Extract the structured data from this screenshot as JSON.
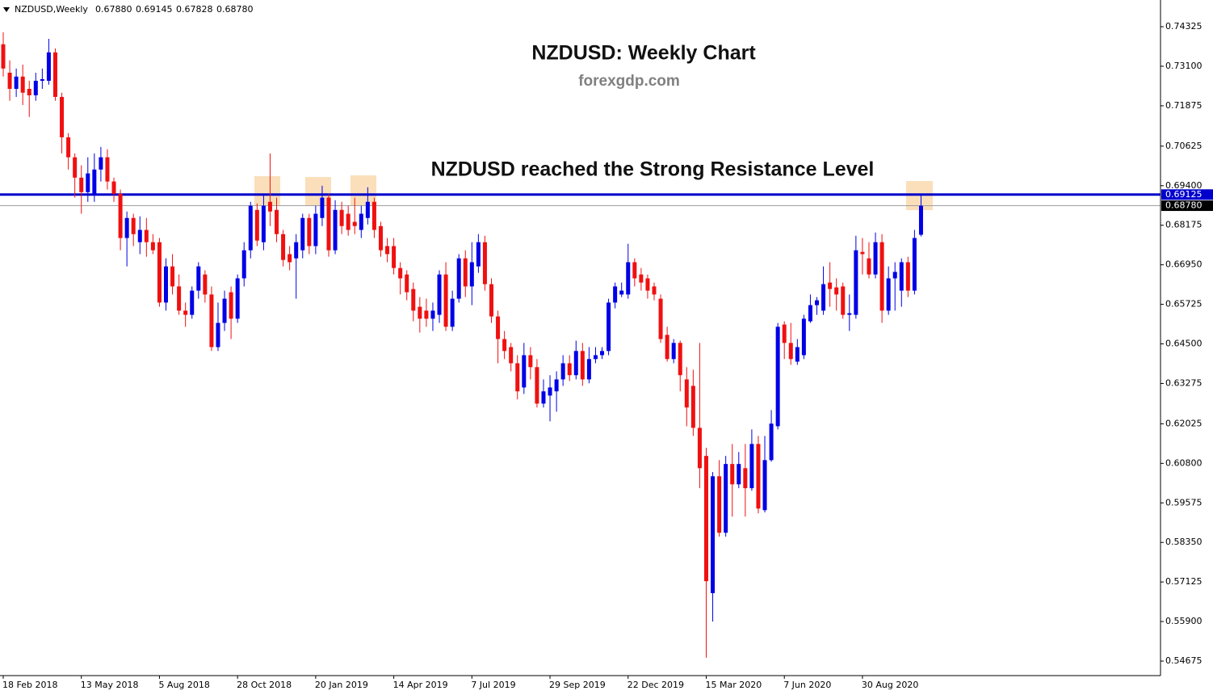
{
  "chart_data": {
    "type": "candlestick",
    "header": "NZDUSD,Weekly",
    "header_values": [
      {
        "value": 0.6788,
        "label": "0.67880"
      },
      {
        "value": 0.69145,
        "label": "0.69145"
      },
      {
        "value": 0.67828,
        "label": "0.67828"
      },
      {
        "value": 0.6878,
        "label": "0.68780"
      }
    ],
    "title": "NZDUSD: Weekly Chart",
    "subtitle": "forexgdp.com",
    "annotation": "NZDUSD reached the Strong Resistance Level",
    "up_color": "#0000e6",
    "down_color": "#f01010",
    "resistance": 0.69125,
    "resistance_color": "#0000cc",
    "last_price": {
      "value": 0.6878,
      "label": "0.68780"
    },
    "ylim": [
      0.54225,
      0.75152
    ],
    "yticks": [
      0.74325,
      {
        "value": 0.731,
        "label": "0.73100"
      },
      0.71875,
      0.70625,
      {
        "value": 0.694,
        "label": "0.69400"
      },
      0.68175,
      {
        "value": 0.6695,
        "label": "0.66950"
      },
      0.65725,
      {
        "value": 0.645,
        "label": "0.64500"
      },
      0.63275,
      0.62025,
      {
        "value": 0.608,
        "label": "0.60800"
      },
      0.59575,
      {
        "value": 0.5835,
        "label": "0.58350"
      },
      0.57125,
      {
        "value": 0.559,
        "label": "0.55900"
      },
      0.54675
    ],
    "xticks": [
      {
        "value": 0,
        "label": "18 Feb 2018"
      },
      {
        "value": 12,
        "label": "13 May 2018"
      },
      {
        "value": 24,
        "label": "5 Aug 2018"
      },
      {
        "value": 36,
        "label": "28 Oct 2018"
      },
      {
        "value": 48,
        "label": "20 Jan 2019"
      },
      {
        "value": 60,
        "label": "14 Apr 2019"
      },
      {
        "value": 72,
        "label": "7 Jul 2019"
      },
      {
        "value": 84,
        "label": "29 Sep 2019"
      },
      {
        "value": 96,
        "label": "22 Dec 2019"
      },
      {
        "value": 108,
        "label": "15 Mar 2020"
      },
      {
        "value": 120,
        "label": "7 Jun 2020"
      },
      {
        "value": 132,
        "label": "30 Aug 2020"
      }
    ],
    "candles": [
      [
        0.7378,
        0.7415,
        0.7278,
        0.7303
      ],
      [
        0.729,
        0.7328,
        0.7203,
        0.724
      ],
      [
        0.724,
        0.7303,
        0.7215,
        0.7278
      ],
      [
        0.7278,
        0.7315,
        0.719,
        0.7228
      ],
      [
        0.724,
        0.7265,
        0.7153,
        0.722
      ],
      [
        0.722,
        0.729,
        0.7203,
        0.7265
      ],
      [
        0.7265,
        0.7303,
        0.724,
        0.727
      ],
      [
        0.7265,
        0.7395,
        0.7253,
        0.7353
      ],
      [
        0.7353,
        0.7365,
        0.7203,
        0.7215
      ],
      [
        0.7215,
        0.7228,
        0.704,
        0.709
      ],
      [
        0.709,
        0.7103,
        0.699,
        0.7028
      ],
      [
        0.7028,
        0.704,
        0.6903,
        0.6965
      ],
      [
        0.6965,
        0.7003,
        0.6853,
        0.692
      ],
      [
        0.692,
        0.7028,
        0.689,
        0.6978
      ],
      [
        0.6915,
        0.704,
        0.689,
        0.699
      ],
      [
        0.699,
        0.706,
        0.6953,
        0.7028
      ],
      [
        0.7028,
        0.7053,
        0.6928,
        0.6953
      ],
      [
        0.6953,
        0.6965,
        0.689,
        0.6915
      ],
      [
        0.6915,
        0.6928,
        0.674,
        0.6778
      ],
      [
        0.6778,
        0.686,
        0.669,
        0.684
      ],
      [
        0.684,
        0.6853,
        0.6753,
        0.679
      ],
      [
        0.6765,
        0.6845,
        0.6728,
        0.6803
      ],
      [
        0.6803,
        0.684,
        0.672,
        0.6765
      ],
      [
        0.6765,
        0.679,
        0.6728,
        0.674
      ],
      [
        0.6765,
        0.6778,
        0.6565,
        0.6578
      ],
      [
        0.6578,
        0.6715,
        0.6553,
        0.669
      ],
      [
        0.669,
        0.6728,
        0.6603,
        0.6628
      ],
      [
        0.6628,
        0.6665,
        0.654,
        0.6553
      ],
      [
        0.6553,
        0.6578,
        0.6503,
        0.654
      ],
      [
        0.654,
        0.6628,
        0.6528,
        0.6615
      ],
      [
        0.6615,
        0.6703,
        0.659,
        0.669
      ],
      [
        0.6665,
        0.6678,
        0.6578,
        0.6603
      ],
      [
        0.6603,
        0.6628,
        0.6428,
        0.644
      ],
      [
        0.644,
        0.6578,
        0.6428,
        0.6515
      ],
      [
        0.6515,
        0.6615,
        0.649,
        0.659
      ],
      [
        0.661,
        0.6628,
        0.6465,
        0.6528
      ],
      [
        0.6528,
        0.6665,
        0.6515,
        0.6653
      ],
      [
        0.6653,
        0.6765,
        0.6628,
        0.674
      ],
      [
        0.674,
        0.689,
        0.6715,
        0.6878
      ],
      [
        0.6865,
        0.6885,
        0.6753,
        0.677
      ],
      [
        0.6765,
        0.6915,
        0.674,
        0.6878
      ],
      [
        0.689,
        0.704,
        0.6815,
        0.686
      ],
      [
        0.6865,
        0.6903,
        0.6765,
        0.679
      ],
      [
        0.679,
        0.6803,
        0.669,
        0.671
      ],
      [
        0.6728,
        0.6753,
        0.6678,
        0.6703
      ],
      [
        0.6715,
        0.679,
        0.659,
        0.6765
      ],
      [
        0.674,
        0.6853,
        0.6715,
        0.684
      ],
      [
        0.684,
        0.6853,
        0.6728,
        0.6753
      ],
      [
        0.6753,
        0.6878,
        0.6728,
        0.6853
      ],
      [
        0.684,
        0.694,
        0.6815,
        0.6903
      ],
      [
        0.6903,
        0.6915,
        0.672,
        0.674
      ],
      [
        0.674,
        0.6895,
        0.6728,
        0.6865
      ],
      [
        0.6865,
        0.689,
        0.679,
        0.6815
      ],
      [
        0.6853,
        0.6878,
        0.6785,
        0.6803
      ],
      [
        0.6828,
        0.6903,
        0.679,
        0.6815
      ],
      [
        0.6803,
        0.6878,
        0.6778,
        0.6853
      ],
      [
        0.684,
        0.6935,
        0.682,
        0.689
      ],
      [
        0.689,
        0.6903,
        0.6778,
        0.6803
      ],
      [
        0.6815,
        0.6828,
        0.672,
        0.674
      ],
      [
        0.6753,
        0.6778,
        0.6703,
        0.6728
      ],
      [
        0.6753,
        0.6778,
        0.6665,
        0.6685
      ],
      [
        0.6685,
        0.6703,
        0.6603,
        0.6653
      ],
      [
        0.6665,
        0.6678,
        0.6585,
        0.661
      ],
      [
        0.662,
        0.664,
        0.652,
        0.6553
      ],
      [
        0.6565,
        0.6595,
        0.6485,
        0.6528
      ],
      [
        0.6553,
        0.659,
        0.6503,
        0.6528
      ],
      [
        0.6528,
        0.6578,
        0.649,
        0.6553
      ],
      [
        0.654,
        0.6678,
        0.6515,
        0.6665
      ],
      [
        0.6665,
        0.6703,
        0.649,
        0.6503
      ],
      [
        0.6503,
        0.6615,
        0.649,
        0.659
      ],
      [
        0.659,
        0.6728,
        0.6578,
        0.6715
      ],
      [
        0.6715,
        0.674,
        0.6595,
        0.6628
      ],
      [
        0.6628,
        0.6765,
        0.657,
        0.6703
      ],
      [
        0.669,
        0.679,
        0.667,
        0.6765
      ],
      [
        0.6765,
        0.6785,
        0.6615,
        0.6635
      ],
      [
        0.6635,
        0.6653,
        0.6515,
        0.6535
      ],
      [
        0.6535,
        0.6553,
        0.639,
        0.6465
      ],
      [
        0.6465,
        0.649,
        0.6403,
        0.6428
      ],
      [
        0.644,
        0.6453,
        0.6365,
        0.639
      ],
      [
        0.639,
        0.6415,
        0.6278,
        0.6303
      ],
      [
        0.6315,
        0.6453,
        0.6295,
        0.6415
      ],
      [
        0.6415,
        0.644,
        0.634,
        0.6378
      ],
      [
        0.6378,
        0.6403,
        0.6253,
        0.6265
      ],
      [
        0.6265,
        0.634,
        0.6253,
        0.6303
      ],
      [
        0.629,
        0.6353,
        0.621,
        0.6315
      ],
      [
        0.6303,
        0.6365,
        0.624,
        0.634
      ],
      [
        0.634,
        0.6415,
        0.632,
        0.639
      ],
      [
        0.639,
        0.6415,
        0.6335,
        0.6353
      ],
      [
        0.6353,
        0.646,
        0.634,
        0.6428
      ],
      [
        0.6428,
        0.6453,
        0.632,
        0.634
      ],
      [
        0.634,
        0.644,
        0.6328,
        0.6403
      ],
      [
        0.6403,
        0.644,
        0.639,
        0.6415
      ],
      [
        0.6415,
        0.644,
        0.6403,
        0.6428
      ],
      [
        0.6428,
        0.659,
        0.6415,
        0.6578
      ],
      [
        0.6578,
        0.664,
        0.656,
        0.6628
      ],
      [
        0.6603,
        0.664,
        0.6595,
        0.6615
      ],
      [
        0.6603,
        0.676,
        0.659,
        0.6703
      ],
      [
        0.6703,
        0.6715,
        0.6628,
        0.6653
      ],
      [
        0.6665,
        0.6685,
        0.6615,
        0.664
      ],
      [
        0.6653,
        0.6665,
        0.659,
        0.6615
      ],
      [
        0.6628,
        0.664,
        0.6585,
        0.6603
      ],
      [
        0.659,
        0.6603,
        0.6453,
        0.6465
      ],
      [
        0.6478,
        0.6503,
        0.6395,
        0.6403
      ],
      [
        0.6403,
        0.6465,
        0.639,
        0.6453
      ],
      [
        0.6453,
        0.646,
        0.6303,
        0.6353
      ],
      [
        0.634,
        0.6378,
        0.6195,
        0.6253
      ],
      [
        0.632,
        0.637,
        0.6165,
        0.619
      ],
      [
        0.619,
        0.6453,
        0.6003,
        0.6065
      ],
      [
        0.6103,
        0.6128,
        0.5478,
        0.5715
      ],
      [
        0.5678,
        0.6053,
        0.559,
        0.604
      ],
      [
        0.604,
        0.609,
        0.5853,
        0.5865
      ],
      [
        0.5865,
        0.6103,
        0.5853,
        0.6078
      ],
      [
        0.6078,
        0.614,
        0.5915,
        0.6015
      ],
      [
        0.6015,
        0.6115,
        0.6003,
        0.6078
      ],
      [
        0.6065,
        0.614,
        0.5915,
        0.6003
      ],
      [
        0.6003,
        0.6185,
        0.5995,
        0.614
      ],
      [
        0.614,
        0.6165,
        0.5925,
        0.594
      ],
      [
        0.5935,
        0.6165,
        0.5928,
        0.609
      ],
      [
        0.609,
        0.6245,
        0.6085,
        0.6203
      ],
      [
        0.6195,
        0.6515,
        0.6185,
        0.6503
      ],
      [
        0.651,
        0.652,
        0.6403,
        0.6453
      ],
      [
        0.6453,
        0.6515,
        0.6385,
        0.6403
      ],
      [
        0.6395,
        0.6465,
        0.6385,
        0.644
      ],
      [
        0.6415,
        0.654,
        0.6403,
        0.6528
      ],
      [
        0.652,
        0.6603,
        0.6515,
        0.657
      ],
      [
        0.657,
        0.6595,
        0.654,
        0.6585
      ],
      [
        0.6553,
        0.669,
        0.654,
        0.6635
      ],
      [
        0.664,
        0.6703,
        0.6565,
        0.662
      ],
      [
        0.6625,
        0.6653,
        0.6553,
        0.6603
      ],
      [
        0.6628,
        0.664,
        0.6528,
        0.654
      ],
      [
        0.654,
        0.6603,
        0.649,
        0.6545
      ],
      [
        0.654,
        0.6785,
        0.6528,
        0.674
      ],
      [
        0.6735,
        0.6778,
        0.6665,
        0.6728
      ],
      [
        0.6715,
        0.6765,
        0.6653,
        0.6665
      ],
      [
        0.6665,
        0.6795,
        0.6653,
        0.6765
      ],
      [
        0.6765,
        0.679,
        0.6515,
        0.6553
      ],
      [
        0.6553,
        0.669,
        0.654,
        0.6653
      ],
      [
        0.6653,
        0.6703,
        0.6553,
        0.6673
      ],
      [
        0.6615,
        0.6715,
        0.6565,
        0.6703
      ],
      [
        0.6703,
        0.672,
        0.6595,
        0.6615
      ],
      [
        0.6615,
        0.6803,
        0.6603,
        0.6778
      ],
      [
        0.6788,
        0.69145,
        0.67828,
        0.6878
      ]
    ]
  }
}
